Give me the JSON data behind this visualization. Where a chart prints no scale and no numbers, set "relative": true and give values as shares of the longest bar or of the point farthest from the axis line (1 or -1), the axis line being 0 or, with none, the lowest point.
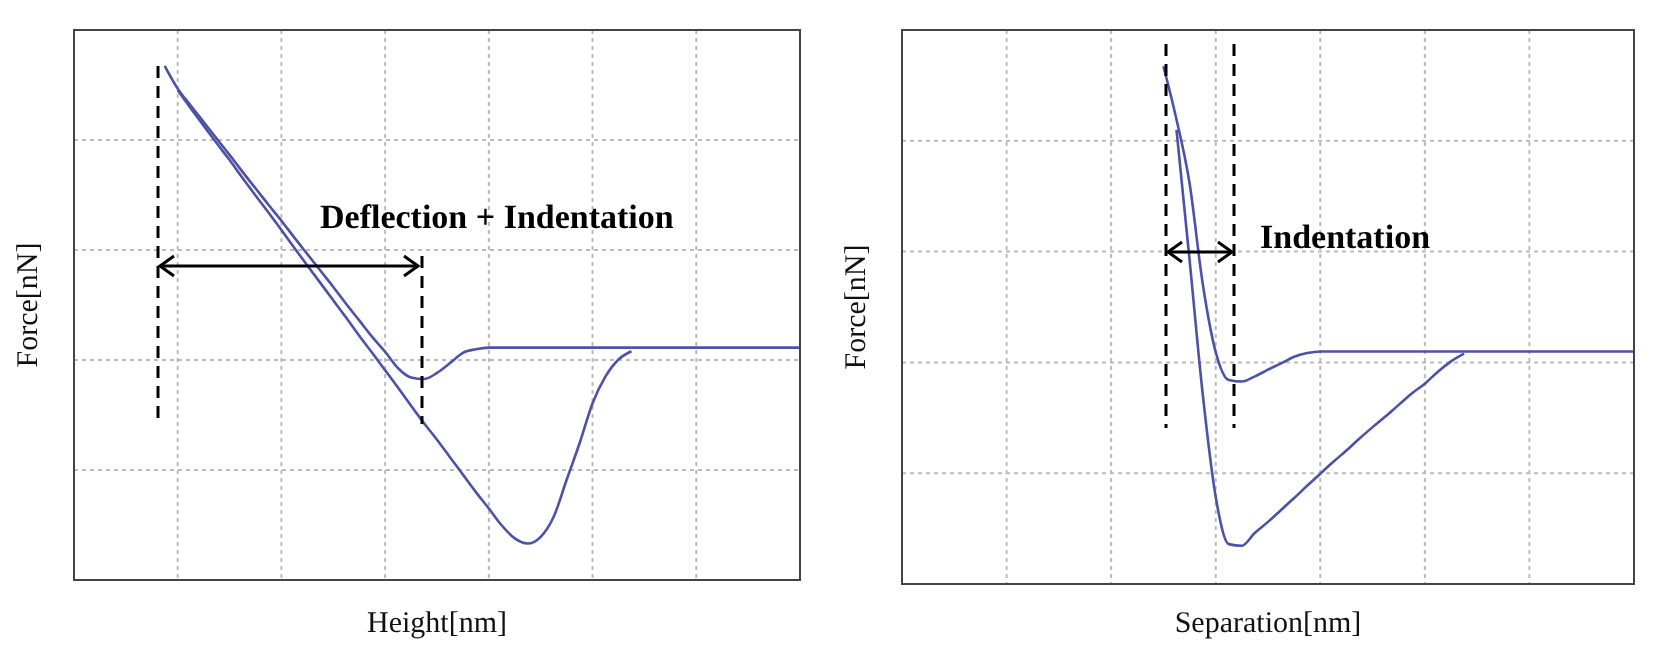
{
  "chart_data": [
    {
      "type": "line",
      "xlabel": "Height[nm]",
      "ylabel": "Force[nN]",
      "relative": true,
      "grid": true,
      "annotations": [
        "Deflection + Indentation"
      ],
      "categories": [
        null,
        null,
        null,
        null,
        null,
        null,
        null,
        null,
        null,
        null,
        null,
        null,
        null,
        null,
        null,
        null,
        null,
        null,
        null,
        null,
        null,
        null,
        null,
        null,
        null,
        null,
        null,
        null,
        null,
        null,
        null,
        null,
        null,
        null,
        null,
        null,
        null,
        null,
        null,
        null,
        null,
        null,
        null,
        null,
        null,
        null,
        null,
        null,
        null,
        null,
        null,
        null,
        null,
        null,
        null,
        null,
        null
      ],
      "series": [
        {
          "color": "#4b52a8",
          "values": [
            null,
            null,
            null,
            null,
            null,
            null,
            null,
            1.0,
            0.956,
            0.923,
            0.891,
            0.859,
            0.827,
            0.794,
            0.762,
            0.73,
            0.699,
            0.666,
            0.634,
            0.602,
            0.57,
            0.537,
            0.505,
            0.473,
            0.444,
            0.412,
            0.394,
            0.391,
            0.403,
            0.422,
            0.442,
            0.449,
            0.452,
            0.452,
            0.452,
            0.452,
            0.452,
            0.452,
            0.452,
            0.452,
            0.452,
            0.452,
            0.452,
            0.452,
            0.452,
            0.452,
            0.452,
            0.452,
            0.452,
            0.452,
            0.452,
            0.452,
            0.452,
            0.452,
            0.452,
            0.452,
            0.452
          ]
        },
        {
          "color": "#4b52a8",
          "values": [
            null,
            null,
            null,
            null,
            null,
            null,
            null,
            null,
            0.953,
            0.918,
            0.884,
            0.85,
            0.817,
            0.782,
            0.748,
            0.715,
            0.681,
            0.646,
            0.612,
            0.578,
            0.544,
            0.51,
            0.475,
            0.442,
            0.408,
            0.374,
            0.339,
            0.305,
            0.273,
            0.239,
            0.205,
            0.171,
            0.139,
            0.106,
            0.081,
            0.071,
            0.084,
            0.123,
            0.195,
            0.266,
            0.344,
            0.396,
            0.429,
            0.445,
            null,
            null,
            null,
            null,
            null,
            null,
            null,
            null,
            null,
            null,
            null,
            null,
            null
          ]
        }
      ]
    },
    {
      "type": "line",
      "xlabel": "Separation[nm]",
      "ylabel": "Force[nN]",
      "relative": true,
      "grid": true,
      "annotations": [
        "Indentation"
      ],
      "categories": [
        null,
        null,
        null,
        null,
        null,
        null,
        null,
        null,
        null,
        null,
        null,
        null,
        null,
        null,
        null,
        null,
        null,
        null,
        null,
        null,
        null,
        null,
        null,
        null,
        null,
        null,
        null,
        null,
        null,
        null,
        null,
        null,
        null,
        null,
        null,
        null,
        null,
        null,
        null,
        null,
        null,
        null,
        null,
        null,
        null,
        null,
        null,
        null,
        null,
        null,
        null,
        null,
        null,
        null,
        null,
        null,
        null
      ],
      "series": [
        {
          "color": "#4b52a8",
          "values": [
            null,
            null,
            null,
            null,
            null,
            null,
            null,
            null,
            null,
            null,
            null,
            null,
            null,
            null,
            null,
            null,
            null,
            null,
            null,
            null,
            1.0,
            0.897,
            0.774,
            0.581,
            0.448,
            0.394,
            0.391,
            0.401,
            0.414,
            0.426,
            0.439,
            0.446,
            0.449,
            0.449,
            0.449,
            0.449,
            0.449,
            0.449,
            0.449,
            0.449,
            0.449,
            0.449,
            0.449,
            0.449,
            0.449,
            0.449,
            0.449,
            0.449,
            0.449,
            0.449,
            0.449,
            0.449,
            0.449,
            0.449,
            0.449,
            0.449,
            0.449
          ]
        },
        {
          "color": "#4b52a8",
          "values": [
            null,
            null,
            null,
            null,
            null,
            null,
            null,
            null,
            null,
            null,
            null,
            null,
            null,
            null,
            null,
            null,
            null,
            null,
            null,
            null,
            null,
            0.877,
            0.626,
            0.368,
            0.168,
            0.077,
            0.074,
            0.099,
            0.12,
            0.143,
            0.166,
            0.19,
            0.213,
            0.236,
            0.258,
            0.281,
            0.303,
            0.324,
            0.346,
            0.368,
            0.387,
            0.41,
            0.43,
            0.445,
            null,
            null,
            null,
            null,
            null,
            null,
            null,
            null,
            null,
            null,
            null,
            null,
            null
          ]
        }
      ]
    }
  ]
}
